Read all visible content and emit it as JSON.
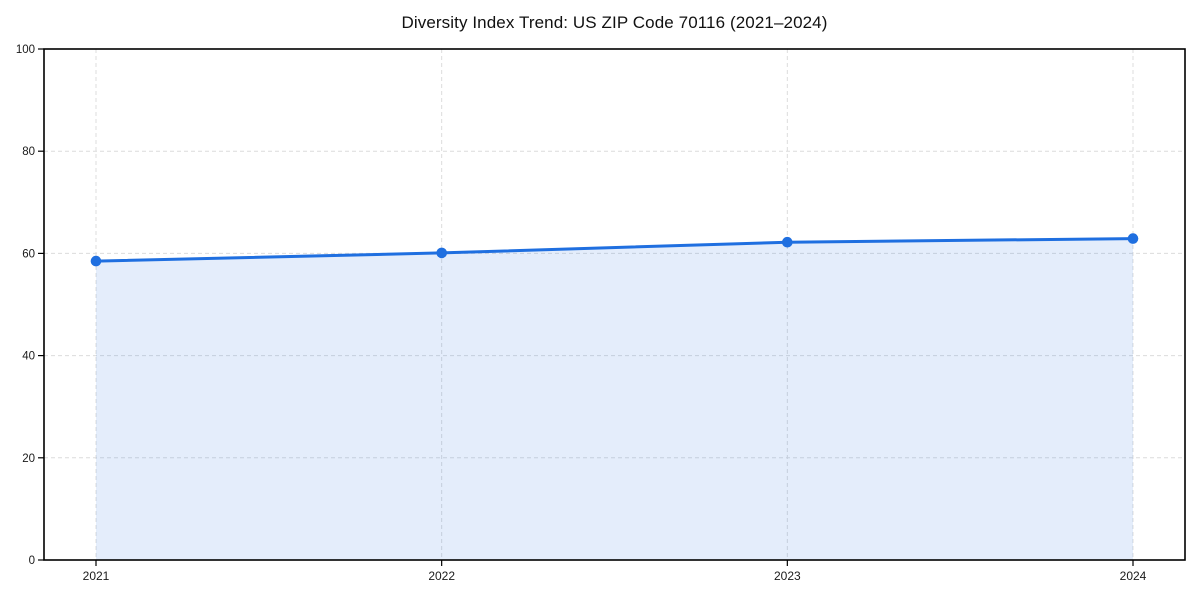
{
  "chart_data": {
    "type": "line",
    "title": "Diversity Index Trend: US ZIP Code 70116 (2021–2024)",
    "xlabel": "",
    "ylabel": "",
    "x": [
      "2021",
      "2022",
      "2023",
      "2024"
    ],
    "values": [
      58.5,
      60.1,
      62.2,
      62.9
    ],
    "ylim": [
      0,
      100
    ],
    "yticks": [
      0,
      20,
      40,
      60,
      80,
      100
    ],
    "grid": "dashed",
    "legend": "none",
    "area_fill": true,
    "markers": "circle",
    "colors": {
      "line": "#1f6fe0",
      "fill": "#1f6fe0",
      "fill_opacity": 0.12,
      "grid": "#dcdcdc",
      "spine": "#000000",
      "text": "#1a1a1a",
      "background": "#ffffff"
    }
  }
}
